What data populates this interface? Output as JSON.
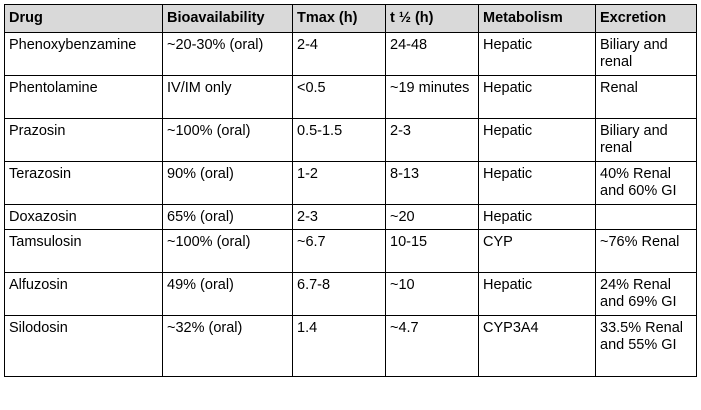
{
  "table": {
    "headers": [
      "Drug",
      "Bioavailability",
      "Tmax (h)",
      "t ½ (h)",
      "Metabolism",
      "Excretion"
    ],
    "rows": [
      [
        "Phenoxybenzamine",
        "~20-30% (oral)",
        "2-4",
        "24-48",
        "Hepatic",
        "Biliary and renal"
      ],
      [
        "Phentolamine",
        "IV/IM only",
        "<0.5",
        "~19 minutes",
        "Hepatic",
        "Renal"
      ],
      [
        "Prazosin",
        "~100% (oral)",
        "0.5-1.5",
        "2-3",
        "Hepatic",
        "Biliary and renal"
      ],
      [
        "Terazosin",
        "90% (oral)",
        "1-2",
        "8-13",
        "Hepatic",
        "40% Renal and 60% GI"
      ],
      [
        "Doxazosin",
        "65% (oral)",
        "2-3",
        "~20",
        "Hepatic",
        ""
      ],
      [
        "Tamsulosin",
        "~100% (oral)",
        "~6.7",
        "10-15",
        "CYP",
        "~76% Renal"
      ],
      [
        "Alfuzosin",
        "49% (oral)",
        "6.7-8",
        "~10",
        "Hepatic",
        "24% Renal and 69% GI"
      ],
      [
        "Silodosin",
        "~32% (oral)",
        "1.4",
        "~4.7",
        "CYP3A4",
        "33.5% Renal and 55% GI"
      ]
    ]
  }
}
